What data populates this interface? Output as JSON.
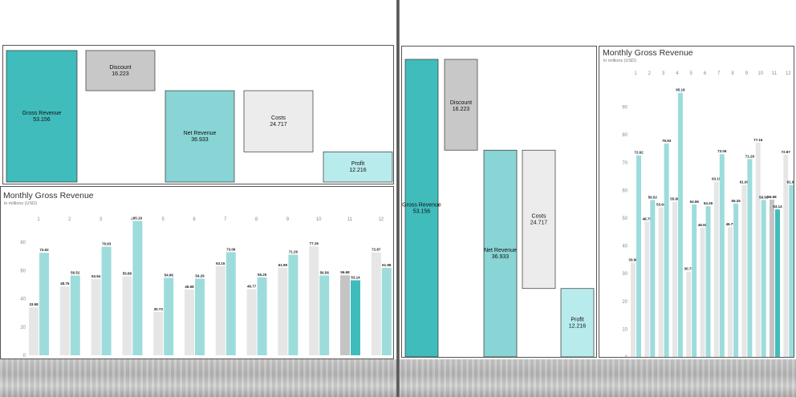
{
  "colors": {
    "gross": "#40bcbc",
    "discount": "#c8c8c8",
    "net": "#89d4d4",
    "costs": "#ececec",
    "profit": "#b8ecec",
    "prev_year": "#e6e6e6",
    "cur_year": "#9edcdc",
    "highlight_cur": "#40bcbc",
    "highlight_prev": "#c4c4c4"
  },
  "chart_data": [
    {
      "type": "waterfall",
      "categories": [
        "Gross Revenue",
        "Discount",
        "Net Revenue",
        "Costs",
        "Profit"
      ],
      "values": [
        53.156,
        -16.223,
        36.933,
        -24.717,
        12.216
      ],
      "labels": [
        "53.156",
        "16.223",
        "36.933",
        "24.717",
        "12.216"
      ]
    },
    {
      "type": "bar",
      "title": "Monthly Gross Revenue",
      "subtitle": "in millions (USD)",
      "categories": [
        "1",
        "2",
        "3",
        "4",
        "5",
        "6",
        "7",
        "8",
        "9",
        "10",
        "11",
        "12"
      ],
      "series": [
        {
          "values": [
            33.98,
            48.75,
            53.94,
            55.88,
            30.73,
            46.58,
            63.15,
            46.77,
            61.99,
            77.16,
            56.68,
            72.87
          ],
          "labels": [
            "33.98",
            "48.75",
            "53.94",
            "55.88",
            "30.73",
            "46.58",
            "63.15",
            "46.77",
            "61.99",
            "77.16",
            "56.68",
            "72.87"
          ]
        },
        {
          "values": [
            72.62,
            56.52,
            76.93,
            95.19,
            54.96,
            54.29,
            73.06,
            55.25,
            71.29,
            56.56,
            53.14,
            61.98
          ],
          "labels": [
            "72.62",
            "56.52",
            "76.93",
            "95.19",
            "54.96",
            "54.29",
            "73.06",
            "55.25",
            "71.29",
            "56.56",
            "53.14",
            "61.98"
          ]
        }
      ],
      "highlight_category": "11",
      "ylim": [
        0,
        100
      ],
      "yticks_left": [
        "0",
        "20",
        "40",
        "60",
        "80"
      ],
      "yticks_right": [
        "0",
        "10",
        "20",
        "30",
        "40",
        "50",
        "60",
        "70",
        "80",
        "90"
      ],
      "grid": false,
      "legend": "none"
    }
  ]
}
